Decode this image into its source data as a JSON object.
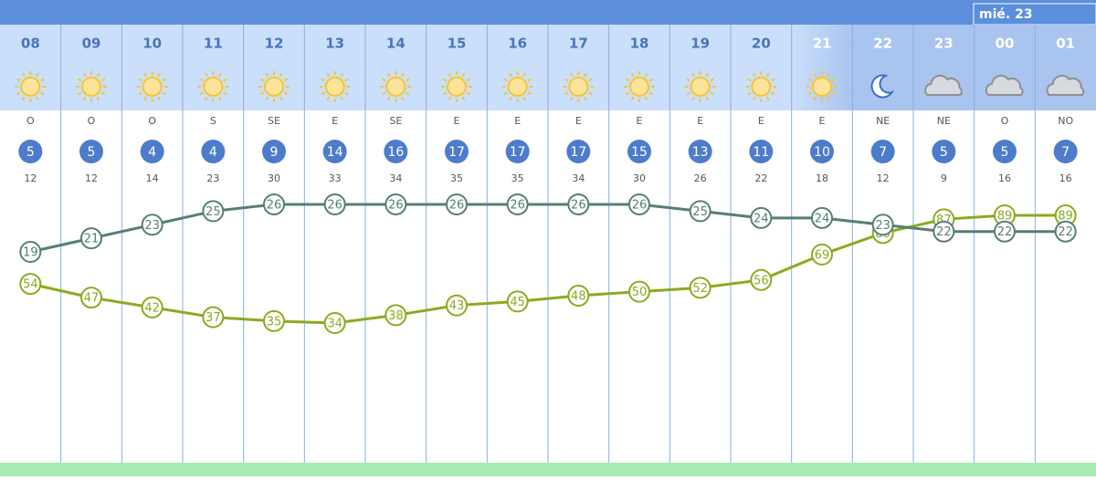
{
  "header": {
    "date": "mié. 23"
  },
  "hours": [
    "08",
    "09",
    "10",
    "11",
    "12",
    "13",
    "14",
    "15",
    "16",
    "17",
    "18",
    "19",
    "20",
    "21",
    "22",
    "23",
    "00",
    "01"
  ],
  "wind_direction": [
    "O",
    "O",
    "O",
    "S",
    "SE",
    "E",
    "SE",
    "E",
    "E",
    "E",
    "E",
    "E",
    "E",
    "E",
    "NE",
    "NE",
    "O",
    "NO"
  ],
  "wind_speed": [
    5,
    5,
    4,
    4,
    9,
    14,
    16,
    17,
    17,
    17,
    15,
    13,
    11,
    10,
    7,
    5,
    5,
    7
  ],
  "wind_gust": [
    12,
    12,
    14,
    23,
    30,
    33,
    34,
    35,
    35,
    34,
    30,
    26,
    22,
    18,
    12,
    9,
    16,
    16
  ],
  "temperature": [
    19,
    21,
    23,
    25,
    26,
    26,
    26,
    26,
    26,
    26,
    26,
    25,
    24,
    24,
    23,
    22,
    22,
    22
  ],
  "humidity": [
    54,
    47,
    42,
    37,
    35,
    34,
    38,
    43,
    45,
    48,
    50,
    52,
    56,
    69,
    80,
    87,
    89,
    89
  ]
}
